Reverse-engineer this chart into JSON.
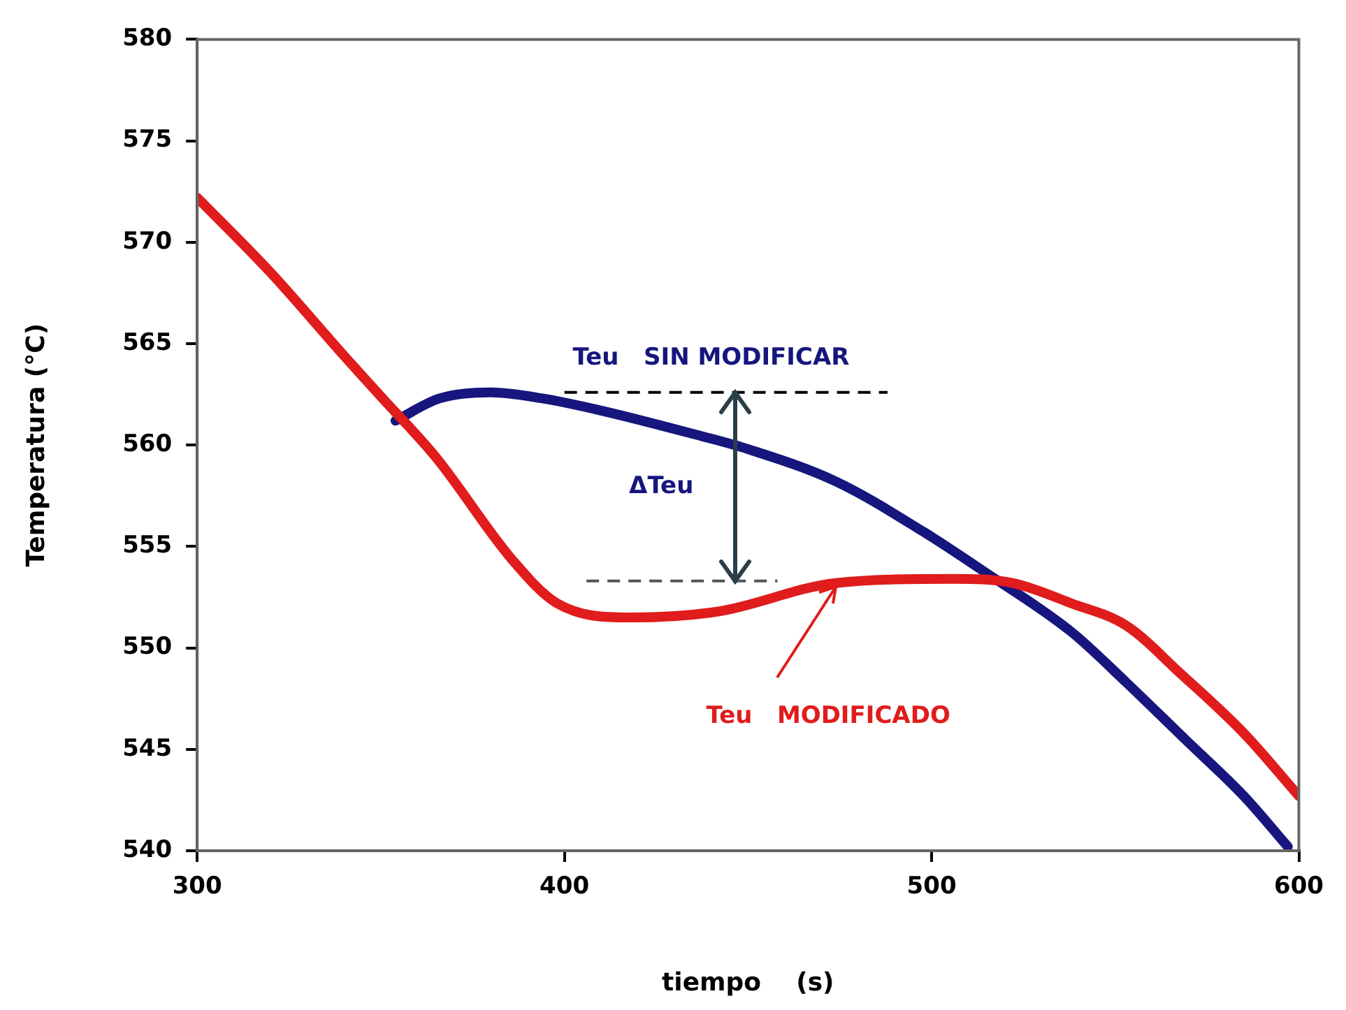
{
  "chart_data": {
    "type": "line",
    "xlabel": "tiempo    (s)",
    "ylabel": "Temperatura (°C)",
    "xlim": [
      300,
      600
    ],
    "xticks": [
      300,
      400,
      500,
      600
    ],
    "ylim": [
      540,
      580
    ],
    "yticks": [
      540,
      545,
      550,
      555,
      560,
      565,
      570,
      575,
      580
    ],
    "grid": false,
    "marker": "none",
    "series": [
      {
        "color": "#e01c1c",
        "x": [
          300,
          320,
          340,
          350,
          365,
          386,
          398,
          418,
          442,
          474,
          506,
          522,
          538,
          553,
          568,
          585,
          600
        ],
        "values": [
          572.2,
          568.5,
          564.4,
          562.4,
          559.4,
          554.3,
          552.2,
          551.5,
          551.8,
          553.2,
          553.4,
          553.2,
          552.2,
          551.1,
          548.7,
          545.8,
          542.7
        ]
      },
      {
        "color": "#16167e",
        "x": [
          354,
          366,
          380,
          394,
          410,
          434,
          450,
          474,
          498,
          514,
          538,
          553,
          569,
          585,
          597
        ],
        "values": [
          561.2,
          562.3,
          562.6,
          562.3,
          561.7,
          560.6,
          559.8,
          558.2,
          555.7,
          553.8,
          550.8,
          548.3,
          545.5,
          542.7,
          540.2
        ]
      },
      {
        "color": "#000000",
        "line_style": "dashed",
        "x": [
          400,
          488
        ],
        "values": [
          562.6,
          562.6
        ]
      },
      {
        "color": "#555555",
        "line_style": "dashed",
        "x": [
          406,
          458
        ],
        "values": [
          553.3,
          553.3
        ]
      }
    ],
    "annotations": [
      {
        "text": "Teu   SIN MODIFICAR",
        "x": 400,
        "y": 562.6
      },
      "ΔTeu",
      {
        "text": "Teu   MODIFICADO",
        "x": 474,
        "y": 553.2
      }
    ]
  }
}
